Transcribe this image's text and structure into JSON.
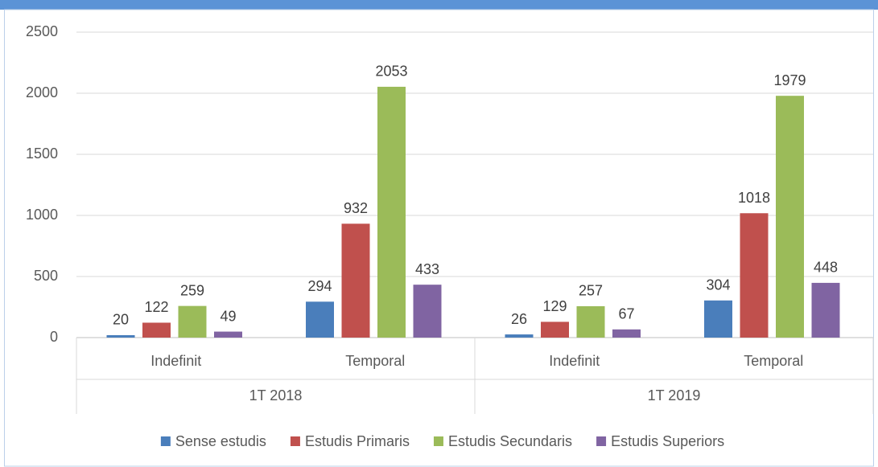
{
  "chart_data": {
    "type": "bar",
    "categories": [
      "Indefinit",
      "Temporal",
      "Indefinit",
      "Temporal"
    ],
    "category_groups": [
      "1T 2018",
      "1T 2019"
    ],
    "series": [
      {
        "name": "Sense estudis",
        "color": "#4a7ebb",
        "values": [
          20,
          294,
          26,
          304
        ]
      },
      {
        "name": "Estudis Primaris",
        "color": "#c0504d",
        "values": [
          122,
          932,
          129,
          1018
        ]
      },
      {
        "name": "Estudis Secundaris",
        "color": "#9bbb59",
        "values": [
          259,
          2053,
          257,
          1979
        ]
      },
      {
        "name": "Estudis Superiors",
        "color": "#8064a2",
        "values": [
          49,
          433,
          67,
          448
        ]
      }
    ],
    "ylim": [
      0,
      2500
    ],
    "yticks": [
      0,
      500,
      1000,
      1500,
      2000,
      2500
    ],
    "grid": true,
    "legend": "bottom"
  }
}
